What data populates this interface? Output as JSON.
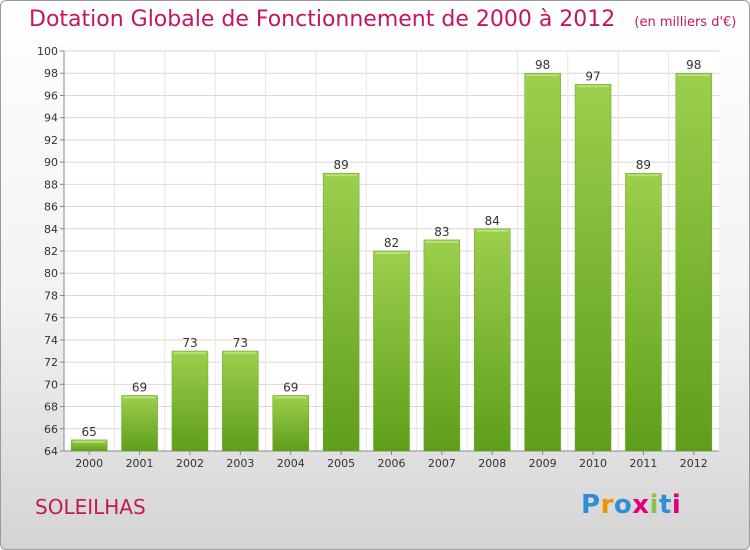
{
  "chart_data": {
    "type": "bar",
    "title": "Dotation Globale de Fonctionnement de 2000 à 2012",
    "subtitle": "(en milliers d'€)",
    "categories": [
      "2000",
      "2001",
      "2002",
      "2003",
      "2004",
      "2005",
      "2006",
      "2007",
      "2008",
      "2009",
      "2010",
      "2011",
      "2012"
    ],
    "values": [
      65,
      69,
      73,
      73,
      69,
      89,
      82,
      83,
      84,
      98,
      97,
      89,
      98
    ],
    "ylim": [
      64,
      100
    ],
    "yticks": [
      64,
      66,
      68,
      70,
      72,
      74,
      76,
      78,
      80,
      82,
      84,
      86,
      88,
      90,
      92,
      94,
      96,
      98,
      100
    ],
    "grid": true,
    "colors": {
      "bar_top": "#9ccf4c",
      "bar_bottom": "#5e9e1a",
      "title": "#c2185b"
    }
  },
  "city": "SOLEILHAS",
  "logo": {
    "letters": [
      "P",
      "r",
      "o",
      "x",
      "i",
      "t",
      "i"
    ],
    "colors": [
      "#2f8fd6",
      "#f39200",
      "#2f8fd6",
      "#e2007a",
      "#8bc34a",
      "#2f8fd6",
      "#e2007a"
    ]
  }
}
